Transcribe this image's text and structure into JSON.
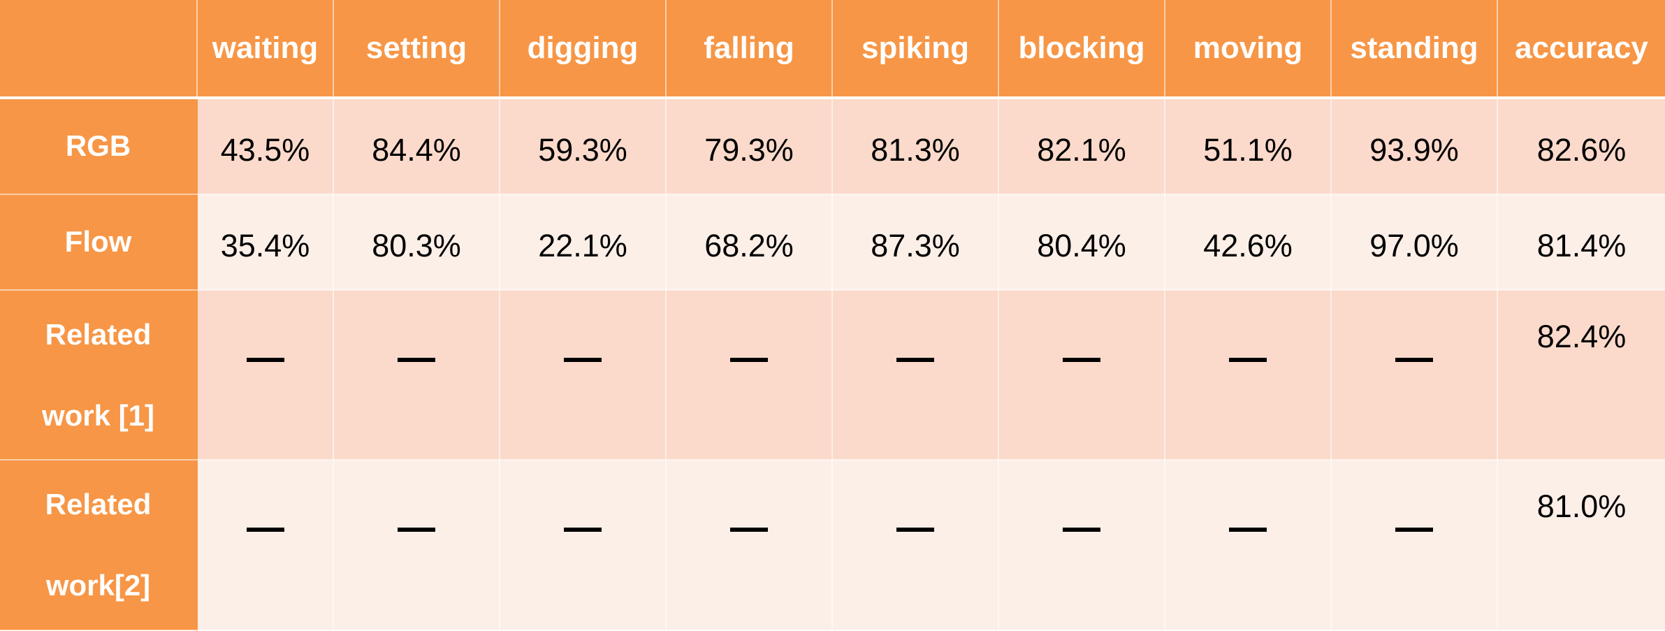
{
  "table": {
    "corner": "",
    "columns": [
      "waiting",
      "setting",
      "digging",
      "falling",
      "spiking",
      "blocking",
      "moving",
      "standing",
      "accuracy"
    ],
    "rows": [
      {
        "label": "RGB",
        "cells": [
          "43.5%",
          "84.4%",
          "59.3%",
          "79.3%",
          "81.3%",
          "82.1%",
          "51.1%",
          "93.9%",
          "82.6%"
        ]
      },
      {
        "label": "Flow",
        "cells": [
          "35.4%",
          "80.3%",
          "22.1%",
          "68.2%",
          "87.3%",
          "80.4%",
          "42.6%",
          "97.0%",
          "81.4%"
        ]
      },
      {
        "label": "Related work [1]",
        "label_line1": "Related",
        "label_line2": "work [1]",
        "cells": [
          "—",
          "—",
          "—",
          "—",
          "—",
          "—",
          "—",
          "—",
          "82.4%"
        ]
      },
      {
        "label": "Related work[2]",
        "label_line1": "Related",
        "label_line2": "work[2]",
        "cells": [
          "—",
          "—",
          "—",
          "—",
          "—",
          "—",
          "—",
          "—",
          "81.0%"
        ]
      }
    ]
  },
  "colors": {
    "header": "#f79646",
    "row_dark": "#fbdacb",
    "row_light": "#fcefe8",
    "header_text": "#ffffff",
    "cell_text": "#000000"
  }
}
